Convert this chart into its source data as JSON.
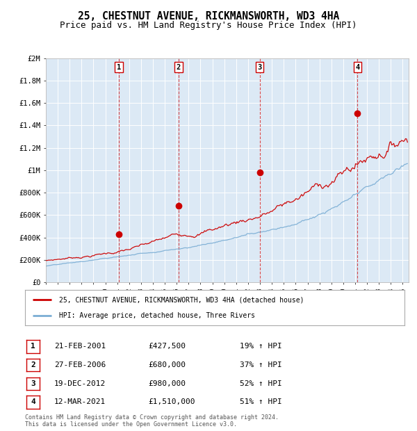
{
  "title": "25, CHESTNUT AVENUE, RICKMANSWORTH, WD3 4HA",
  "subtitle": "Price paid vs. HM Land Registry's House Price Index (HPI)",
  "title_fontsize": 10.5,
  "subtitle_fontsize": 9,
  "background_color": "#ffffff",
  "plot_bg_color": "#dce9f5",
  "grid_color": "#ffffff",
  "ylim": [
    0,
    2000000
  ],
  "yticks": [
    0,
    200000,
    400000,
    600000,
    800000,
    1000000,
    1200000,
    1400000,
    1600000,
    1800000,
    2000000
  ],
  "ytick_labels": [
    "£0",
    "£200K",
    "£400K",
    "£600K",
    "£800K",
    "£1M",
    "£1.2M",
    "£1.4M",
    "£1.6M",
    "£1.8M",
    "£2M"
  ],
  "xmin_year": 1995.0,
  "xmax_year": 2025.5,
  "xticks": [
    1995,
    1996,
    1997,
    1998,
    1999,
    2000,
    2001,
    2002,
    2003,
    2004,
    2005,
    2006,
    2007,
    2008,
    2009,
    2010,
    2011,
    2012,
    2013,
    2014,
    2015,
    2016,
    2017,
    2018,
    2019,
    2020,
    2021,
    2022,
    2023,
    2024,
    2025
  ],
  "red_line_color": "#cc0000",
  "blue_line_color": "#7aadd4",
  "vline_color": "#cc0000",
  "sale_marker_color": "#cc0000",
  "sale_marker_size": 7,
  "transactions": [
    {
      "label": "1",
      "year": 2001.13,
      "price": 427500
    },
    {
      "label": "2",
      "year": 2006.15,
      "price": 680000
    },
    {
      "label": "3",
      "year": 2012.97,
      "price": 980000
    },
    {
      "label": "4",
      "year": 2021.19,
      "price": 1510000
    }
  ],
  "legend_red_label": "25, CHESTNUT AVENUE, RICKMANSWORTH, WD3 4HA (detached house)",
  "legend_blue_label": "HPI: Average price, detached house, Three Rivers",
  "table_rows": [
    {
      "num": "1",
      "date": "21-FEB-2001",
      "price": "£427,500",
      "pct": "19% ↑ HPI"
    },
    {
      "num": "2",
      "date": "27-FEB-2006",
      "price": "£680,000",
      "pct": "37% ↑ HPI"
    },
    {
      "num": "3",
      "date": "19-DEC-2012",
      "price": "£980,000",
      "pct": "52% ↑ HPI"
    },
    {
      "num": "4",
      "date": "12-MAR-2021",
      "price": "£1,510,000",
      "pct": "51% ↑ HPI"
    }
  ],
  "footnote1": "Contains HM Land Registry data © Crown copyright and database right 2024.",
  "footnote2": "This data is licensed under the Open Government Licence v3.0."
}
